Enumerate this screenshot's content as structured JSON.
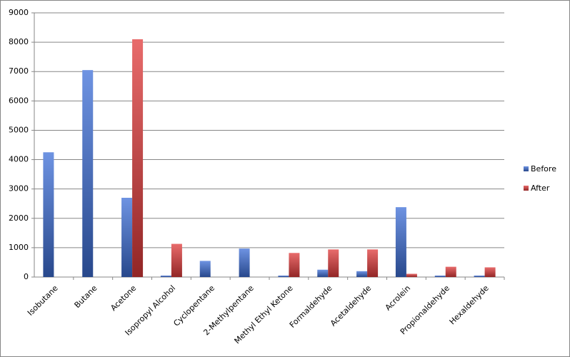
{
  "chart_data": {
    "type": "bar",
    "categories": [
      "Isobutane",
      "Butane",
      "Acetone",
      "Isopropyl Alcohol",
      "Cyclopentane",
      "2-Methylpentane",
      "Methyl Ethyl Ketone",
      "Formaldehyde",
      "Acetaldehyde",
      "Acrolein",
      "Propionaldehyde",
      "Hexaldehyde"
    ],
    "series": [
      {
        "name": "Before",
        "color": "#3d6fd8",
        "values": [
          4250,
          7050,
          2700,
          50,
          550,
          970,
          50,
          250,
          200,
          2380,
          50,
          50
        ]
      },
      {
        "name": "After",
        "color": "#e03a3a",
        "values": [
          0,
          0,
          8100,
          1130,
          0,
          0,
          820,
          940,
          940,
          110,
          350,
          330
        ]
      }
    ],
    "ylim": [
      0,
      9000
    ],
    "yticks": [
      0,
      1000,
      2000,
      3000,
      4000,
      5000,
      6000,
      7000,
      8000,
      9000
    ],
    "grid": true,
    "legend": "right"
  }
}
